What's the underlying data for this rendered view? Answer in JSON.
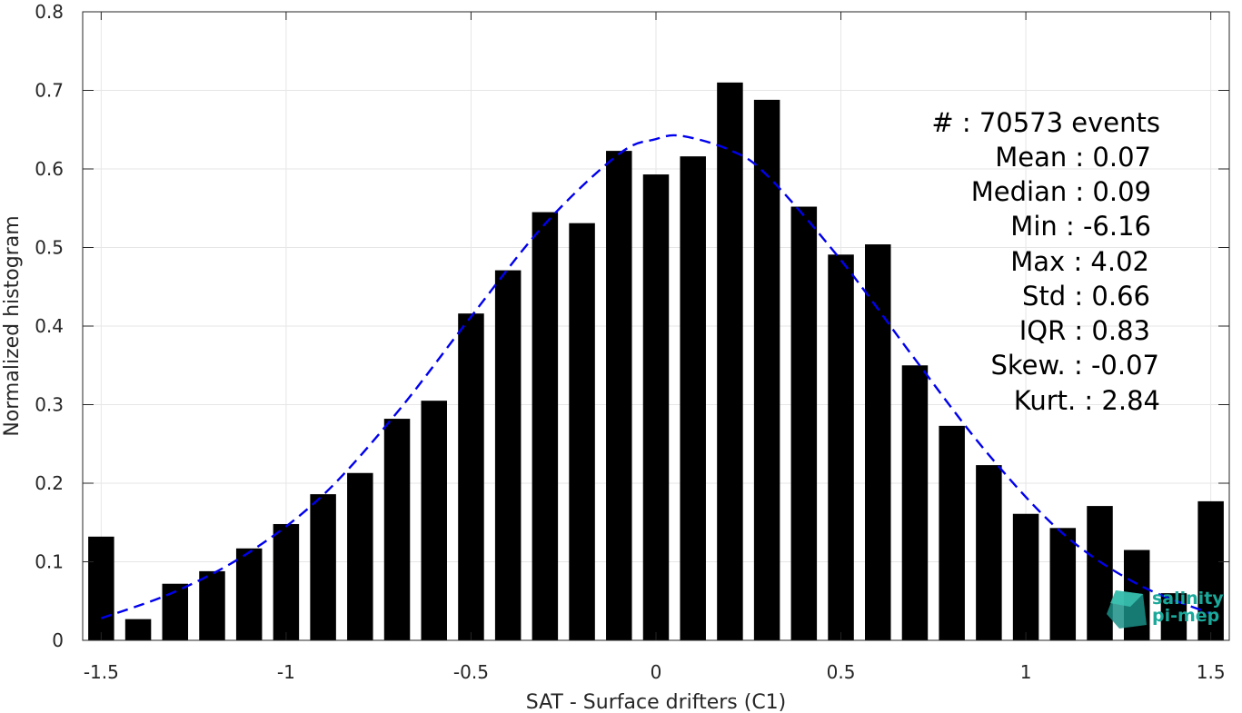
{
  "chart_data": {
    "type": "bar",
    "xlabel": "SAT - Surface drifters (C1)",
    "ylabel": "Normalized histogram",
    "xlim": [
      -1.55,
      1.55
    ],
    "ylim": [
      0,
      0.8
    ],
    "grid": true,
    "x_ticks": [
      -1.5,
      -1,
      -0.5,
      0,
      0.5,
      1,
      1.5
    ],
    "x_tick_labels": [
      "-1.5",
      "-1",
      "-0.5",
      "0",
      "0.5",
      "1",
      "1.5"
    ],
    "y_ticks": [
      0,
      0.1,
      0.2,
      0.3,
      0.4,
      0.5,
      0.6,
      0.7,
      0.8
    ],
    "y_tick_labels": [
      "0",
      "0.1",
      "0.2",
      "0.3",
      "0.4",
      "0.5",
      "0.6",
      "0.7",
      "0.8"
    ],
    "bar_color": "#000000",
    "bins": [
      -1.5,
      -1.4,
      -1.3,
      -1.2,
      -1.1,
      -1.0,
      -0.9,
      -0.8,
      -0.7,
      -0.6,
      -0.5,
      -0.4,
      -0.3,
      -0.2,
      -0.1,
      0.0,
      0.1,
      0.2,
      0.3,
      0.4,
      0.5,
      0.6,
      0.7,
      0.8,
      0.9,
      1.0,
      1.1,
      1.2,
      1.3,
      1.4,
      1.5
    ],
    "values": [
      0.132,
      0.027,
      0.072,
      0.088,
      0.117,
      0.148,
      0.186,
      0.213,
      0.282,
      0.305,
      0.416,
      0.471,
      0.545,
      0.531,
      0.623,
      0.593,
      0.616,
      0.71,
      0.688,
      0.552,
      0.491,
      0.504,
      0.35,
      0.273,
      0.223,
      0.161,
      0.143,
      0.171,
      0.115,
      0.06,
      0.177
    ],
    "fit_curve": {
      "style": "dashed",
      "color": "#0000ee",
      "x": [
        -1.5,
        -1.3,
        -1.1,
        -0.9,
        -0.7,
        -0.5,
        -0.3,
        -0.1,
        0.0,
        0.07,
        0.2,
        0.3,
        0.5,
        0.7,
        0.9,
        1.1,
        1.3,
        1.5
      ],
      "y": [
        0.028,
        0.062,
        0.112,
        0.185,
        0.29,
        0.412,
        0.53,
        0.619,
        0.638,
        0.642,
        0.624,
        0.592,
        0.484,
        0.358,
        0.236,
        0.136,
        0.072,
        0.034
      ]
    },
    "annotation_lines": [
      "#  : 70573 events",
      "Mean : 0.07",
      "Median : 0.09",
      "Min : -6.16",
      "Max : 4.02",
      "Std : 0.66",
      "IQR : 0.83",
      "Skew. : -0.07",
      "Kurt. : 2.84"
    ]
  },
  "logo": {
    "line1": "salinity",
    "line2": "pi-mep",
    "color": "#1aa89a"
  }
}
